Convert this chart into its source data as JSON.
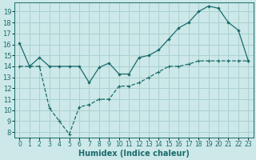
{
  "title": "",
  "xlabel": "Humidex (Indice chaleur)",
  "ylabel": "",
  "bg_color": "#cce8e8",
  "line_color": "#1a6b6b",
  "grid_color": "#aad0d0",
  "xlim": [
    -0.5,
    23.5
  ],
  "ylim": [
    7.5,
    19.8
  ],
  "xticks": [
    0,
    1,
    2,
    3,
    4,
    5,
    6,
    7,
    8,
    9,
    10,
    11,
    12,
    13,
    14,
    15,
    16,
    17,
    18,
    19,
    20,
    21,
    22,
    23
  ],
  "yticks": [
    8,
    9,
    10,
    11,
    12,
    13,
    14,
    15,
    16,
    17,
    18,
    19
  ],
  "line1_x": [
    0,
    1,
    2,
    3,
    4,
    5,
    6,
    7,
    8,
    9,
    10,
    11,
    12,
    13,
    14,
    15,
    16,
    17,
    18,
    19,
    20,
    21,
    22,
    23
  ],
  "line1_y": [
    16.1,
    14.0,
    14.8,
    14.0,
    14.0,
    14.0,
    14.0,
    12.5,
    13.9,
    14.3,
    13.3,
    13.3,
    14.8,
    15.0,
    15.5,
    16.5,
    17.5,
    18.0,
    19.0,
    19.5,
    19.3,
    18.0,
    17.3,
    14.5
  ],
  "line2_x": [
    0,
    1,
    2,
    3,
    4,
    5,
    6,
    7,
    8,
    9,
    10,
    11,
    12,
    13,
    14,
    15,
    16,
    17,
    18,
    19,
    20,
    21,
    22,
    23
  ],
  "line2_y": [
    14.0,
    14.0,
    14.0,
    10.2,
    9.0,
    7.8,
    10.3,
    10.5,
    11.0,
    11.0,
    12.2,
    12.2,
    12.5,
    13.0,
    13.5,
    14.0,
    14.0,
    14.2,
    14.5,
    14.5,
    14.5,
    14.5,
    14.5,
    14.5
  ],
  "tick_fontsize": 5.5,
  "xlabel_fontsize": 7.0
}
